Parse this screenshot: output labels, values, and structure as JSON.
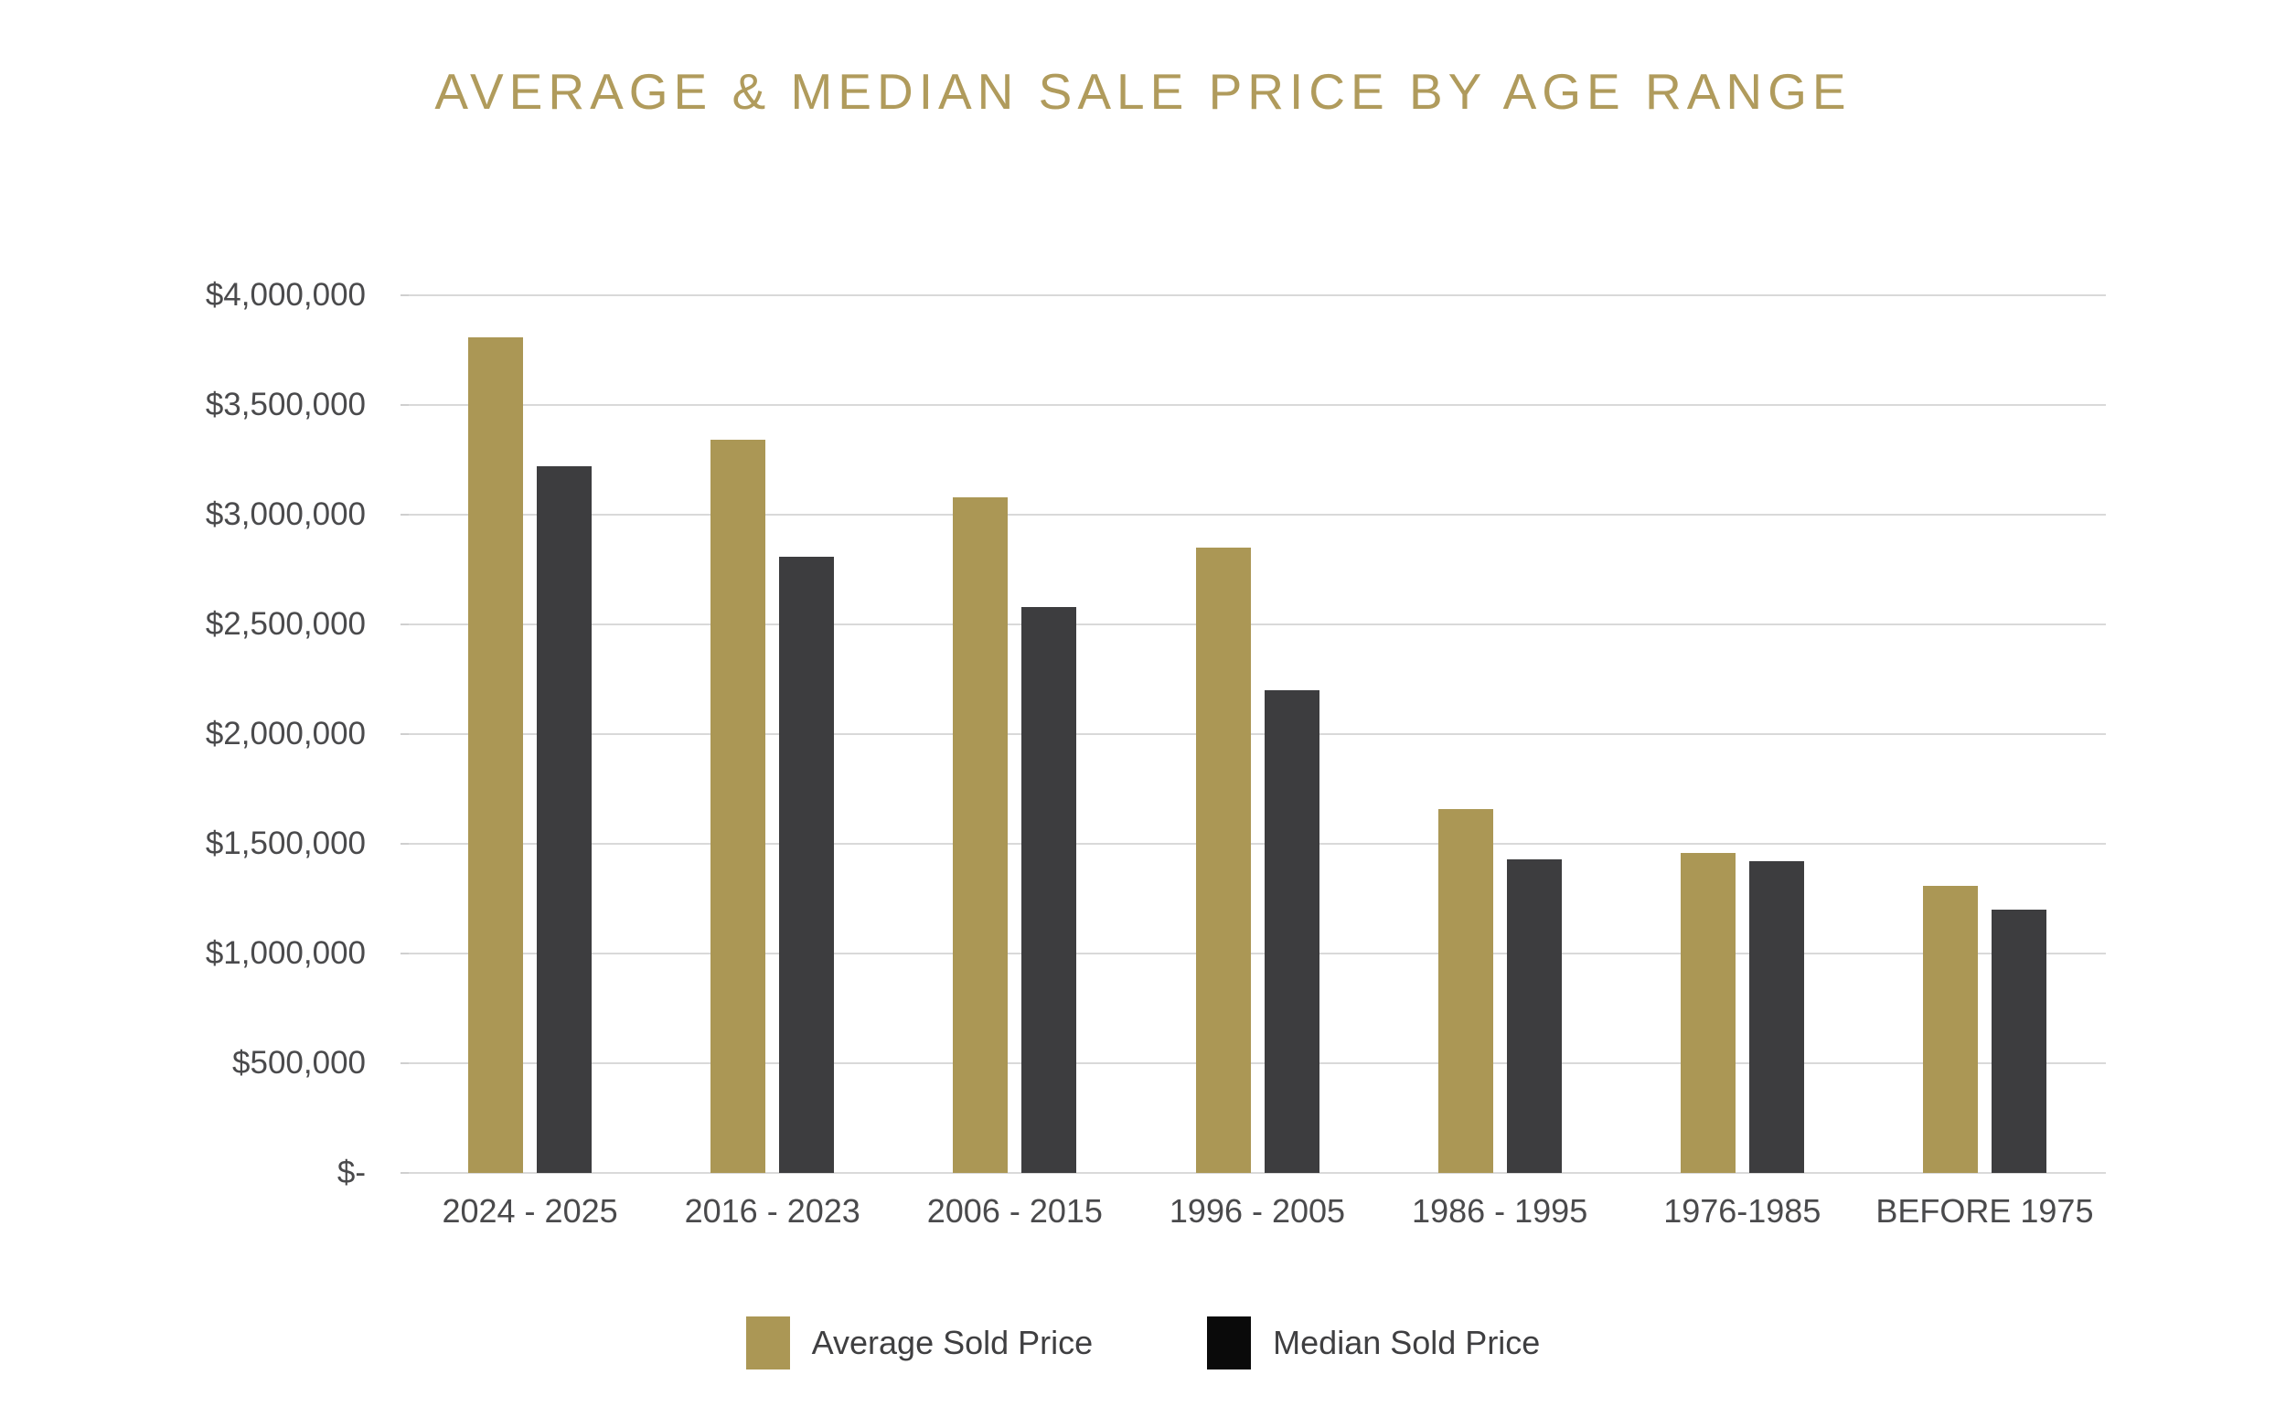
{
  "chart_data": {
    "type": "bar",
    "title": "AVERAGE & MEDIAN SALE PRICE BY AGE RANGE",
    "categories": [
      "2024 - 2025",
      "2016 - 2023",
      "2006 - 2015",
      "1996 - 2005",
      "1986 - 1995",
      "1976-1985",
      "BEFORE 1975"
    ],
    "series": [
      {
        "name": "Average Sold Price",
        "color": "#ab9755",
        "legend_color": "#ab9755",
        "values": [
          3810000,
          3340000,
          3080000,
          2850000,
          1660000,
          1460000,
          1310000
        ]
      },
      {
        "name": "Median Sold Price",
        "color": "#3d3d3f",
        "legend_color": "#0a0a0a",
        "values": [
          3220000,
          2810000,
          2580000,
          2200000,
          1430000,
          1420000,
          1200000
        ]
      }
    ],
    "y_axis": {
      "min": 0,
      "max": 4000000,
      "step": 500000,
      "tick_labels": [
        "$4,000,000",
        "$3,500,000",
        "$3,000,000",
        "$2,500,000",
        "$2,000,000",
        "$1,500,000",
        "$1,000,000",
        "$500,000",
        "$-"
      ],
      "tick_values": [
        4000000,
        3500000,
        3000000,
        2500000,
        2000000,
        1500000,
        1000000,
        500000,
        0
      ]
    },
    "grid": true,
    "legend_position": "bottom",
    "colors": {
      "title": "#b09b5c",
      "gridline": "#d9d9d9",
      "axis_text": "#4a4a4c",
      "background": "#ffffff"
    }
  }
}
